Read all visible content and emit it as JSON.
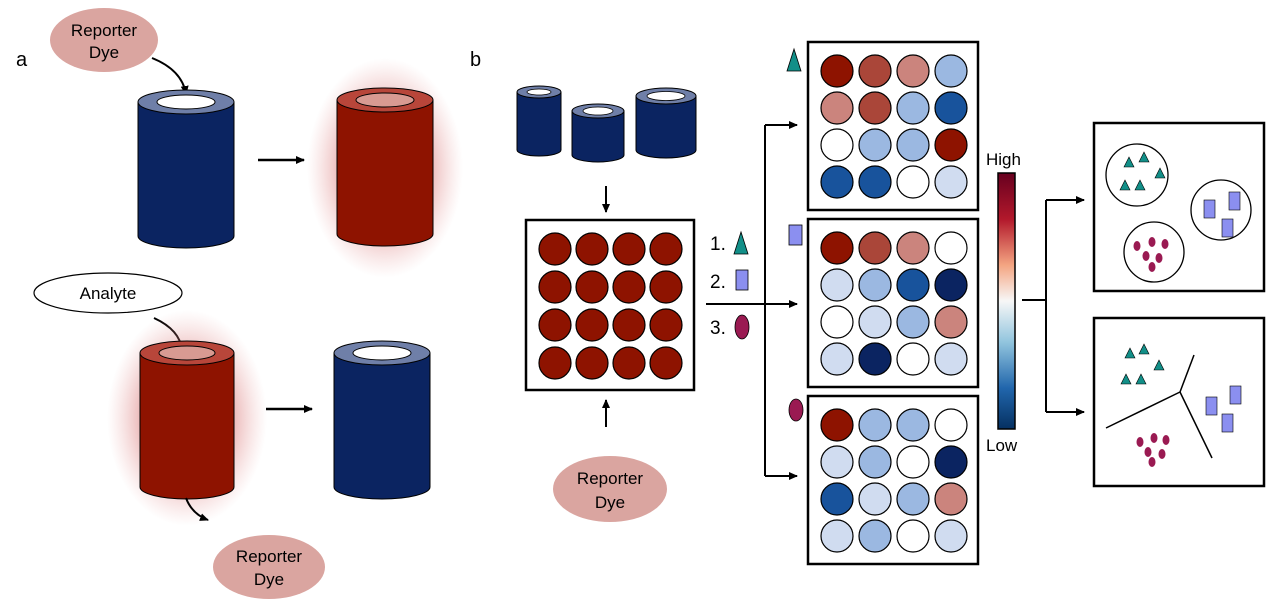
{
  "panel_a": {
    "label": "a",
    "reporter_top": [
      "Reporter",
      "Dye"
    ],
    "analyte": "Analyte",
    "reporter_bottom": [
      "Reporter",
      "Dye"
    ]
  },
  "panel_b": {
    "label": "b",
    "reporter": [
      "Reporter",
      "Dye"
    ],
    "steps": [
      "1.",
      "2.",
      "3."
    ],
    "scale_high": "High",
    "scale_low": "Low",
    "heatmaps": [
      {
        "analyte": "triangle",
        "values": [
          [
            1.0,
            0.75,
            0.45,
            -0.3
          ],
          [
            0.45,
            0.75,
            -0.3,
            -0.75
          ],
          [
            0.0,
            -0.3,
            -0.3,
            1.0
          ],
          [
            -0.75,
            -0.75,
            0.0,
            -0.15
          ]
        ]
      },
      {
        "analyte": "rectangle",
        "values": [
          [
            1.0,
            0.75,
            0.45,
            0.0
          ],
          [
            -0.15,
            -0.3,
            -0.75,
            -1.0
          ],
          [
            0.0,
            -0.15,
            -0.3,
            0.45
          ],
          [
            -0.15,
            -1.0,
            0.0,
            -0.15
          ]
        ]
      },
      {
        "analyte": "ellipse",
        "values": [
          [
            1.0,
            -0.3,
            -0.3,
            0.0
          ],
          [
            -0.15,
            -0.3,
            0.0,
            -1.0
          ],
          [
            -0.75,
            -0.15,
            -0.3,
            0.45
          ],
          [
            -0.15,
            -0.3,
            0.0,
            -0.15
          ]
        ]
      }
    ]
  },
  "colors": {
    "cylinder_blue": "#0b2461",
    "cylinder_red": "#8e1300",
    "reporter_fill": "#daa5a0",
    "analyte_teal": "#128f88",
    "analyte_purple": "#8b8ff0",
    "analyte_magenta": "#9a1a52"
  }
}
